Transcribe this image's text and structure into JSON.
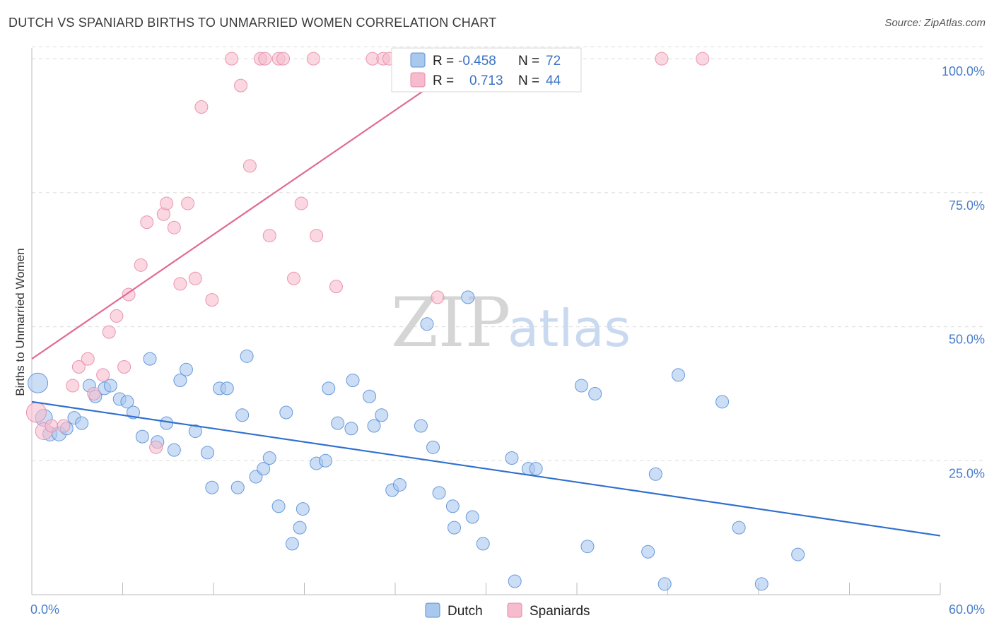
{
  "chart_data": {
    "type": "scatter",
    "title": "DUTCH VS SPANIARD BIRTHS TO UNMARRIED WOMEN CORRELATION CHART",
    "source": "Source: ZipAtlas.com",
    "xlabel": "",
    "ylabel": "Births to Unmarried Women",
    "xlim": [
      0,
      60
    ],
    "ylim": [
      0,
      102
    ],
    "x_tick_labels": [
      "0.0%",
      "60.0%"
    ],
    "y_ticks": [
      25,
      50,
      75,
      100
    ],
    "y_tick_labels": [
      "25.0%",
      "50.0%",
      "75.0%",
      "100.0%"
    ],
    "watermark": {
      "zip": "ZIP",
      "atlas": "atlas"
    },
    "legend": {
      "r_label": "R =",
      "n_label": "N =",
      "entries": [
        {
          "name": "Dutch",
          "r": "-0.458",
          "n": "72"
        },
        {
          "name": "Spaniards",
          "r": "0.713",
          "n": "44"
        }
      ]
    },
    "colors": {
      "dutch_fill": "#a9c8ee",
      "dutch_stroke": "#5b8fd6",
      "dutch_line": "#2f6fce",
      "spaniards_fill": "#f6bccd",
      "spaniards_stroke": "#e88aa8",
      "spaniards_line": "#e06a93",
      "tick_text": "#4a7ec9"
    },
    "series": [
      {
        "name": "Dutch",
        "trend": {
          "x0": 0,
          "y0": 36,
          "x1": 60,
          "y1": 11
        },
        "points": [
          [
            0.4,
            39.5,
            14
          ],
          [
            0.8,
            33,
            12
          ],
          [
            1.2,
            30,
            10
          ],
          [
            1.8,
            30,
            10
          ],
          [
            2.3,
            31,
            9
          ],
          [
            2.8,
            33,
            9
          ],
          [
            3.3,
            32,
            9
          ],
          [
            3.8,
            39,
            9
          ],
          [
            4.2,
            37,
            9
          ],
          [
            4.8,
            38.5,
            9
          ],
          [
            5.2,
            39,
            9
          ],
          [
            5.8,
            36.5,
            9
          ],
          [
            6.3,
            36,
            9
          ],
          [
            6.7,
            34,
            9
          ],
          [
            7.3,
            29.5,
            9
          ],
          [
            7.8,
            44,
            9
          ],
          [
            8.3,
            28.5,
            9
          ],
          [
            8.9,
            32,
            9
          ],
          [
            9.4,
            27,
            9
          ],
          [
            9.8,
            40,
            9
          ],
          [
            10.2,
            42,
            9
          ],
          [
            10.8,
            30.5,
            9
          ],
          [
            11.6,
            26.5,
            9
          ],
          [
            11.9,
            20,
            9
          ],
          [
            12.4,
            38.5,
            9
          ],
          [
            12.9,
            38.5,
            9
          ],
          [
            13.6,
            20,
            9
          ],
          [
            13.9,
            33.5,
            9
          ],
          [
            14.2,
            44.5,
            9
          ],
          [
            14.8,
            22,
            9
          ],
          [
            15.3,
            23.5,
            9
          ],
          [
            15.7,
            25.5,
            9
          ],
          [
            16.3,
            16.5,
            9
          ],
          [
            16.8,
            34,
            9
          ],
          [
            17.2,
            9.5,
            9
          ],
          [
            17.7,
            12.5,
            9
          ],
          [
            17.9,
            16,
            9
          ],
          [
            18.8,
            24.5,
            9
          ],
          [
            19.4,
            25,
            9
          ],
          [
            19.6,
            38.5,
            9
          ],
          [
            20.2,
            32,
            9
          ],
          [
            21.1,
            31,
            9
          ],
          [
            21.2,
            40,
            9
          ],
          [
            22.3,
            37,
            9
          ],
          [
            22.6,
            31.5,
            9
          ],
          [
            23.1,
            33.5,
            9
          ],
          [
            23.8,
            19.5,
            9
          ],
          [
            24.3,
            20.5,
            9
          ],
          [
            25.7,
            31.5,
            9
          ],
          [
            26.1,
            50.5,
            9
          ],
          [
            26.5,
            27.5,
            9
          ],
          [
            26.9,
            19,
            9
          ],
          [
            27.8,
            16.5,
            9
          ],
          [
            27.9,
            12.5,
            9
          ],
          [
            28.8,
            55.5,
            9
          ],
          [
            29.1,
            14.5,
            9
          ],
          [
            29.8,
            9.5,
            9
          ],
          [
            31.7,
            25.5,
            9
          ],
          [
            31.9,
            2.5,
            9
          ],
          [
            32.8,
            23.5,
            9
          ],
          [
            33.3,
            23.5,
            9
          ],
          [
            36.3,
            39,
            9
          ],
          [
            36.7,
            9,
            9
          ],
          [
            37.2,
            37.5,
            9
          ],
          [
            40.7,
            8,
            9
          ],
          [
            41.2,
            22.5,
            9
          ],
          [
            41.8,
            2,
            9
          ],
          [
            42.7,
            41,
            9
          ],
          [
            45.6,
            36,
            9
          ],
          [
            46.7,
            12.5,
            9
          ],
          [
            48.2,
            2,
            9
          ],
          [
            50.6,
            7.5,
            9
          ]
        ]
      },
      {
        "name": "Spaniards",
        "trend": {
          "x0": 0,
          "y0": 44,
          "x1": 30,
          "y1": 102
        },
        "points": [
          [
            0.3,
            34,
            14
          ],
          [
            0.8,
            30.5,
            12
          ],
          [
            1.3,
            31.5,
            9
          ],
          [
            2.1,
            31.5,
            9
          ],
          [
            2.7,
            39,
            9
          ],
          [
            3.1,
            42.5,
            9
          ],
          [
            3.7,
            44,
            9
          ],
          [
            4.1,
            37.5,
            9
          ],
          [
            4.7,
            41,
            9
          ],
          [
            5.1,
            49,
            9
          ],
          [
            5.6,
            52,
            9
          ],
          [
            6.1,
            42.5,
            9
          ],
          [
            6.4,
            56,
            9
          ],
          [
            7.2,
            61.5,
            9
          ],
          [
            7.6,
            69.5,
            9
          ],
          [
            8.2,
            27.5,
            9
          ],
          [
            8.7,
            71,
            9
          ],
          [
            8.9,
            73,
            9
          ],
          [
            9.4,
            68.5,
            9
          ],
          [
            9.8,
            58,
            9
          ],
          [
            10.3,
            73,
            9
          ],
          [
            10.8,
            59,
            9
          ],
          [
            11.2,
            91,
            9
          ],
          [
            11.9,
            55,
            9
          ],
          [
            13.2,
            100,
            9
          ],
          [
            13.8,
            95,
            9
          ],
          [
            14.4,
            80,
            9
          ],
          [
            15.1,
            100,
            9
          ],
          [
            15.4,
            100,
            9
          ],
          [
            15.7,
            67,
            9
          ],
          [
            16.3,
            100,
            9
          ],
          [
            16.6,
            100,
            9
          ],
          [
            17.3,
            59,
            9
          ],
          [
            17.8,
            73,
            9
          ],
          [
            18.6,
            100,
            9
          ],
          [
            18.8,
            67,
            9
          ],
          [
            20.1,
            57.5,
            9
          ],
          [
            22.5,
            100,
            9
          ],
          [
            23.2,
            100,
            9
          ],
          [
            23.6,
            100,
            9
          ],
          [
            25.1,
            100,
            9
          ],
          [
            26.8,
            55.5,
            9
          ],
          [
            41.6,
            100,
            9
          ],
          [
            44.3,
            100,
            9
          ]
        ]
      }
    ]
  }
}
